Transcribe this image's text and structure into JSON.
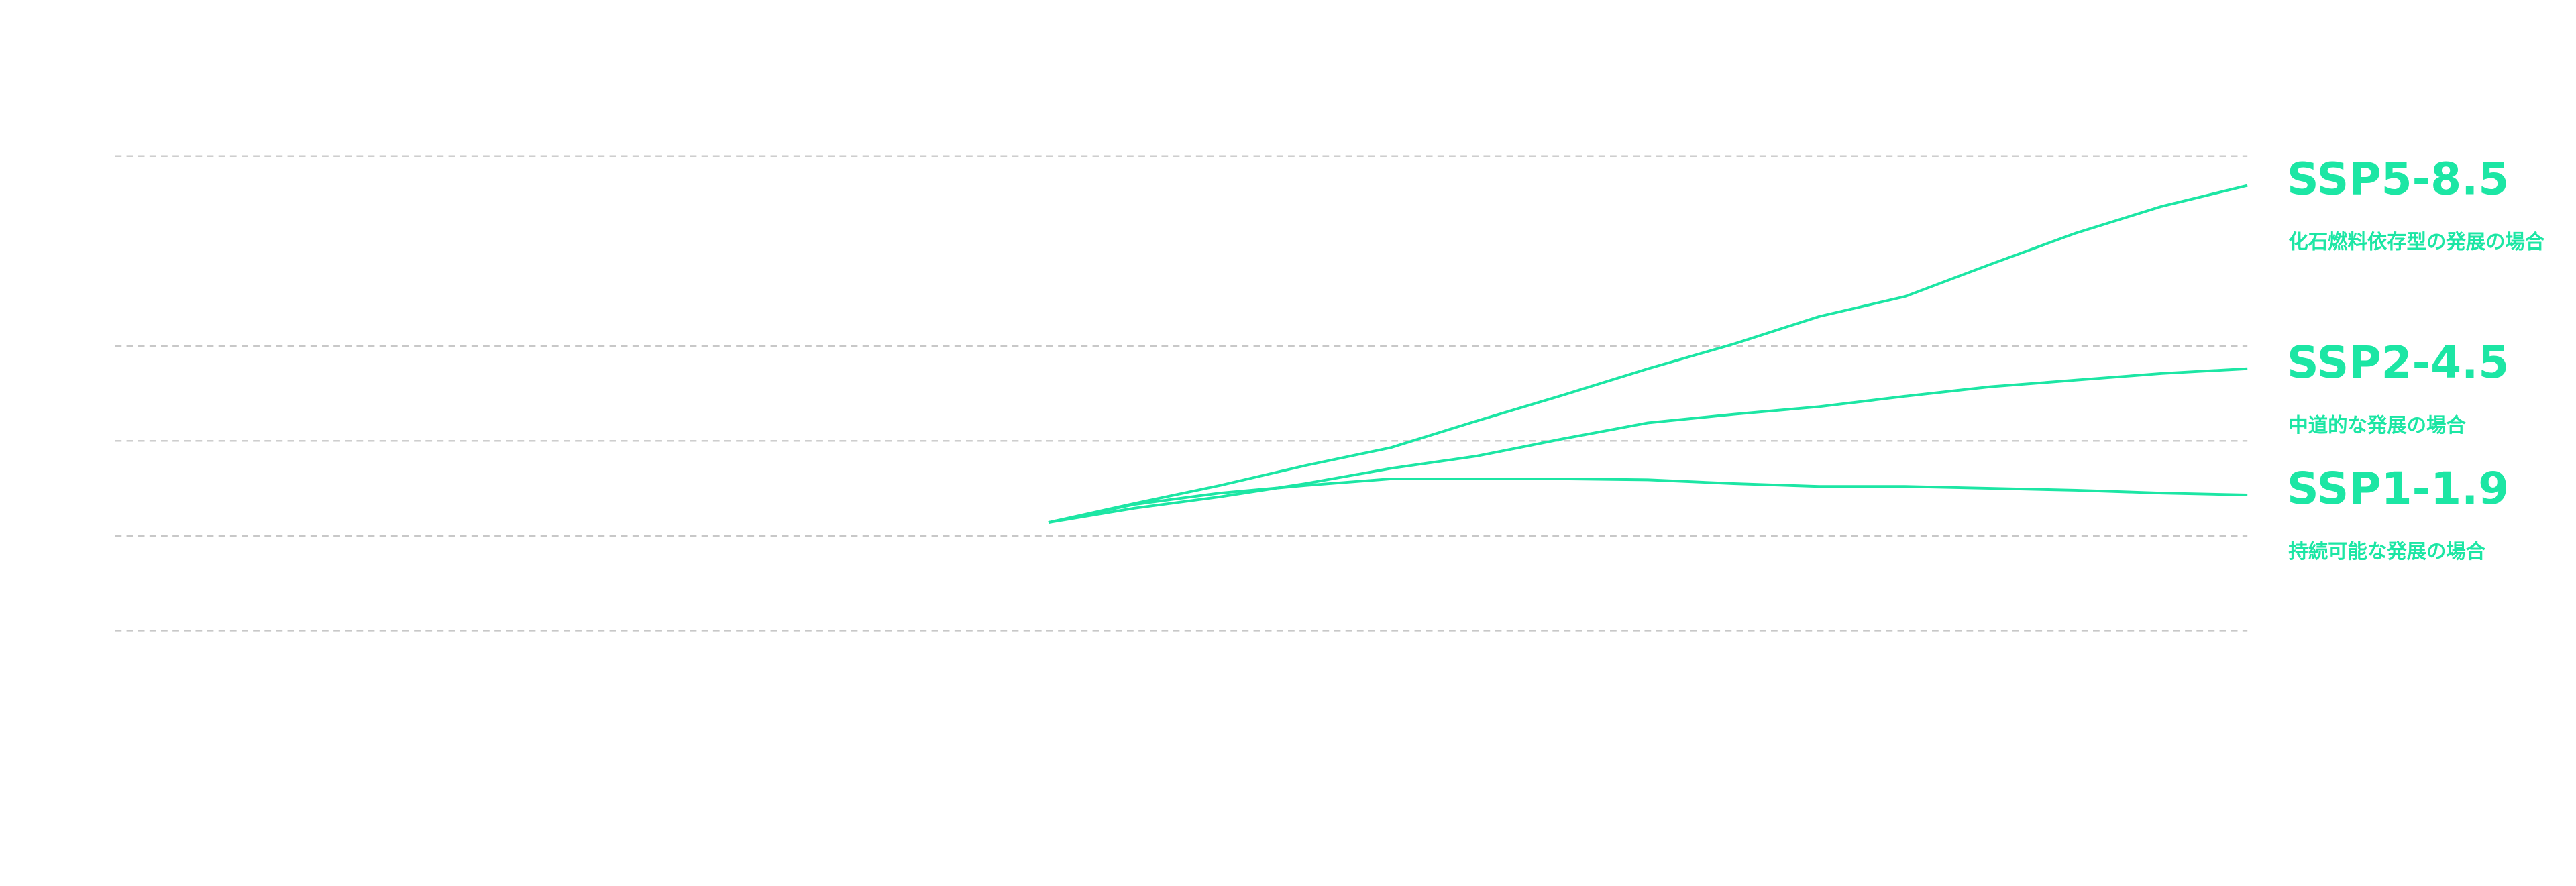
{
  "chart_data": {
    "type": "line",
    "x": [
      1960,
      1970,
      1980,
      1990,
      2000,
      2010,
      2020,
      2030,
      2040,
      2050,
      2060,
      2070,
      2080,
      2090,
      2100
    ],
    "xlim": [
      1851,
      2100
    ],
    "ylim": [
      0,
      5
    ],
    "yticks": [
      0,
      1,
      2,
      3,
      5
    ],
    "grid": true,
    "series": [
      {
        "name": "SSP5-8.5",
        "description": "化石燃料依存型の発展の場合",
        "color": "#1ce6a4",
        "values": [
          1.14,
          1.34,
          1.53,
          1.74,
          1.93,
          2.21,
          2.48,
          2.76,
          3.02,
          3.31,
          3.52,
          3.86,
          4.19,
          4.47,
          4.69
        ]
      },
      {
        "name": "SSP2-4.5",
        "description": "中道的な発展の場合",
        "color": "#1ce6a4",
        "values": [
          1.14,
          1.29,
          1.41,
          1.55,
          1.71,
          1.84,
          2.02,
          2.19,
          2.28,
          2.36,
          2.47,
          2.57,
          2.64,
          2.71,
          2.76
        ]
      },
      {
        "name": "SSP1-1.9",
        "description": "持続可能な発展の場合",
        "color": "#1ce6a4",
        "values": [
          1.14,
          1.33,
          1.45,
          1.53,
          1.6,
          1.6,
          1.6,
          1.59,
          1.55,
          1.52,
          1.52,
          1.5,
          1.48,
          1.45,
          1.43
        ]
      }
    ]
  }
}
